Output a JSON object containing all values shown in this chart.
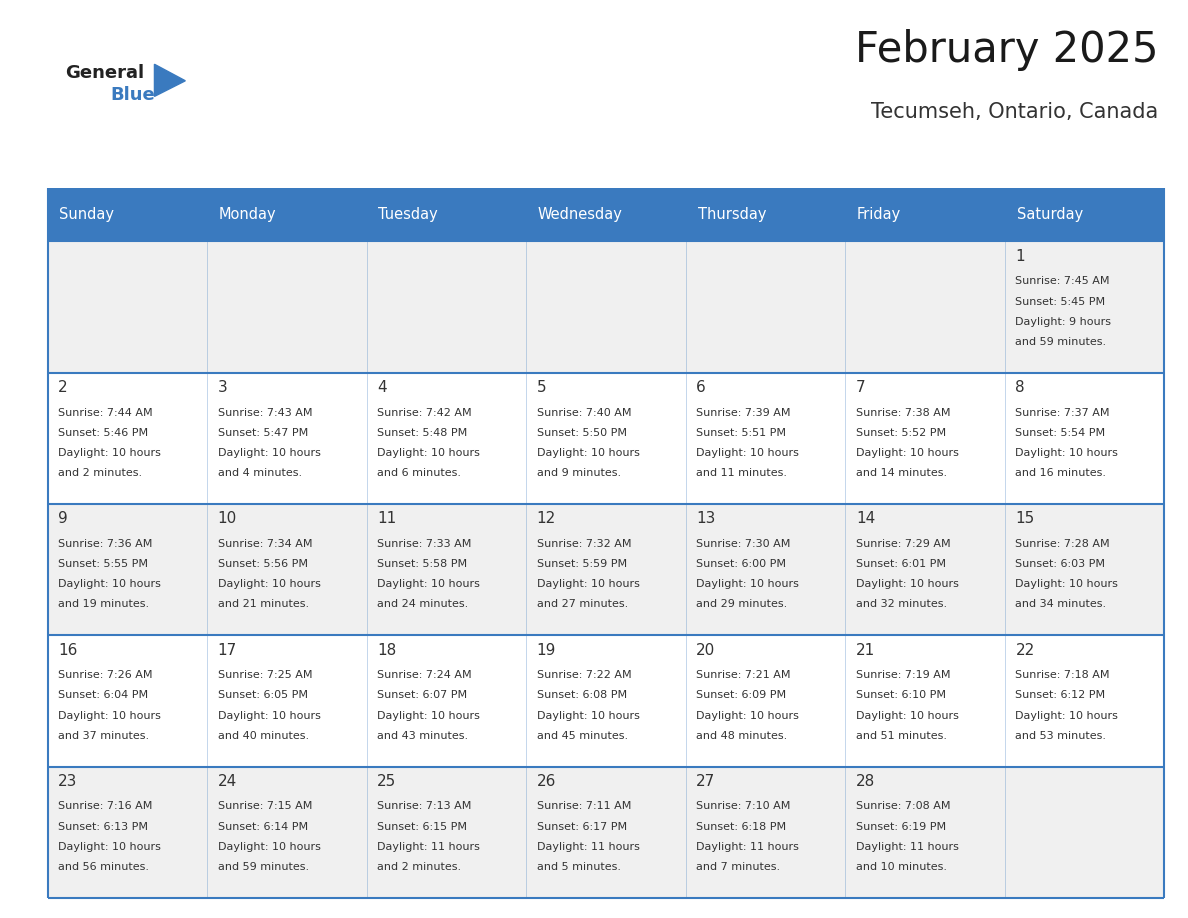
{
  "title": "February 2025",
  "subtitle": "Tecumseh, Ontario, Canada",
  "header_bg": "#3a7abf",
  "header_text_color": "#ffffff",
  "cell_bg_odd": "#f0f0f0",
  "cell_bg_even": "#ffffff",
  "row_border_color": "#3a7abf",
  "text_color": "#333333",
  "day_number_color": "#333333",
  "logo_general_color": "#222222",
  "logo_blue_color": "#3a7abf",
  "logo_triangle_color": "#3a7abf",
  "days_of_week": [
    "Sunday",
    "Monday",
    "Tuesday",
    "Wednesday",
    "Thursday",
    "Friday",
    "Saturday"
  ],
  "weeks": [
    [
      {
        "day": "",
        "info": ""
      },
      {
        "day": "",
        "info": ""
      },
      {
        "day": "",
        "info": ""
      },
      {
        "day": "",
        "info": ""
      },
      {
        "day": "",
        "info": ""
      },
      {
        "day": "",
        "info": ""
      },
      {
        "day": "1",
        "info": "Sunrise: 7:45 AM\nSunset: 5:45 PM\nDaylight: 9 hours\nand 59 minutes."
      }
    ],
    [
      {
        "day": "2",
        "info": "Sunrise: 7:44 AM\nSunset: 5:46 PM\nDaylight: 10 hours\nand 2 minutes."
      },
      {
        "day": "3",
        "info": "Sunrise: 7:43 AM\nSunset: 5:47 PM\nDaylight: 10 hours\nand 4 minutes."
      },
      {
        "day": "4",
        "info": "Sunrise: 7:42 AM\nSunset: 5:48 PM\nDaylight: 10 hours\nand 6 minutes."
      },
      {
        "day": "5",
        "info": "Sunrise: 7:40 AM\nSunset: 5:50 PM\nDaylight: 10 hours\nand 9 minutes."
      },
      {
        "day": "6",
        "info": "Sunrise: 7:39 AM\nSunset: 5:51 PM\nDaylight: 10 hours\nand 11 minutes."
      },
      {
        "day": "7",
        "info": "Sunrise: 7:38 AM\nSunset: 5:52 PM\nDaylight: 10 hours\nand 14 minutes."
      },
      {
        "day": "8",
        "info": "Sunrise: 7:37 AM\nSunset: 5:54 PM\nDaylight: 10 hours\nand 16 minutes."
      }
    ],
    [
      {
        "day": "9",
        "info": "Sunrise: 7:36 AM\nSunset: 5:55 PM\nDaylight: 10 hours\nand 19 minutes."
      },
      {
        "day": "10",
        "info": "Sunrise: 7:34 AM\nSunset: 5:56 PM\nDaylight: 10 hours\nand 21 minutes."
      },
      {
        "day": "11",
        "info": "Sunrise: 7:33 AM\nSunset: 5:58 PM\nDaylight: 10 hours\nand 24 minutes."
      },
      {
        "day": "12",
        "info": "Sunrise: 7:32 AM\nSunset: 5:59 PM\nDaylight: 10 hours\nand 27 minutes."
      },
      {
        "day": "13",
        "info": "Sunrise: 7:30 AM\nSunset: 6:00 PM\nDaylight: 10 hours\nand 29 minutes."
      },
      {
        "day": "14",
        "info": "Sunrise: 7:29 AM\nSunset: 6:01 PM\nDaylight: 10 hours\nand 32 minutes."
      },
      {
        "day": "15",
        "info": "Sunrise: 7:28 AM\nSunset: 6:03 PM\nDaylight: 10 hours\nand 34 minutes."
      }
    ],
    [
      {
        "day": "16",
        "info": "Sunrise: 7:26 AM\nSunset: 6:04 PM\nDaylight: 10 hours\nand 37 minutes."
      },
      {
        "day": "17",
        "info": "Sunrise: 7:25 AM\nSunset: 6:05 PM\nDaylight: 10 hours\nand 40 minutes."
      },
      {
        "day": "18",
        "info": "Sunrise: 7:24 AM\nSunset: 6:07 PM\nDaylight: 10 hours\nand 43 minutes."
      },
      {
        "day": "19",
        "info": "Sunrise: 7:22 AM\nSunset: 6:08 PM\nDaylight: 10 hours\nand 45 minutes."
      },
      {
        "day": "20",
        "info": "Sunrise: 7:21 AM\nSunset: 6:09 PM\nDaylight: 10 hours\nand 48 minutes."
      },
      {
        "day": "21",
        "info": "Sunrise: 7:19 AM\nSunset: 6:10 PM\nDaylight: 10 hours\nand 51 minutes."
      },
      {
        "day": "22",
        "info": "Sunrise: 7:18 AM\nSunset: 6:12 PM\nDaylight: 10 hours\nand 53 minutes."
      }
    ],
    [
      {
        "day": "23",
        "info": "Sunrise: 7:16 AM\nSunset: 6:13 PM\nDaylight: 10 hours\nand 56 minutes."
      },
      {
        "day": "24",
        "info": "Sunrise: 7:15 AM\nSunset: 6:14 PM\nDaylight: 10 hours\nand 59 minutes."
      },
      {
        "day": "25",
        "info": "Sunrise: 7:13 AM\nSunset: 6:15 PM\nDaylight: 11 hours\nand 2 minutes."
      },
      {
        "day": "26",
        "info": "Sunrise: 7:11 AM\nSunset: 6:17 PM\nDaylight: 11 hours\nand 5 minutes."
      },
      {
        "day": "27",
        "info": "Sunrise: 7:10 AM\nSunset: 6:18 PM\nDaylight: 11 hours\nand 7 minutes."
      },
      {
        "day": "28",
        "info": "Sunrise: 7:08 AM\nSunset: 6:19 PM\nDaylight: 11 hours\nand 10 minutes."
      },
      {
        "day": "",
        "info": ""
      }
    ]
  ],
  "fig_width": 11.88,
  "fig_height": 9.18,
  "dpi": 100
}
